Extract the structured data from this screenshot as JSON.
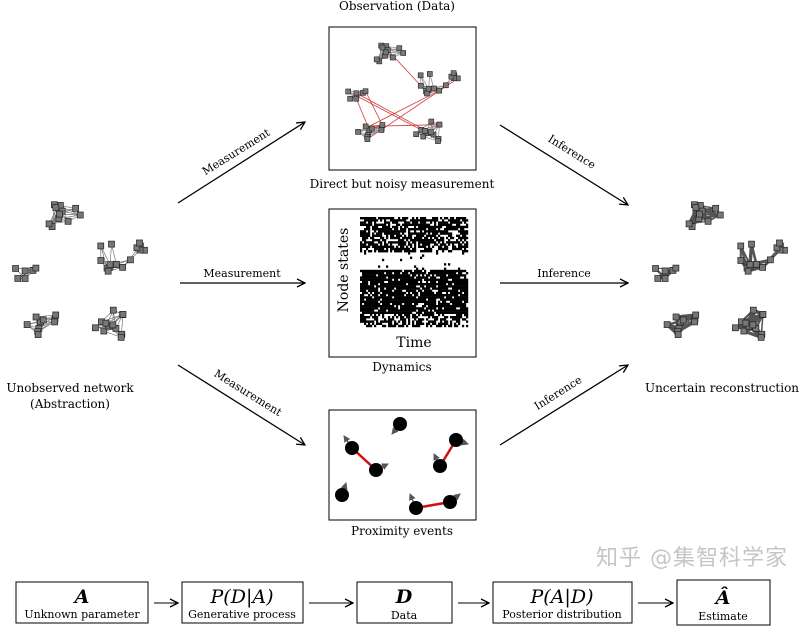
{
  "top_title": "Observation (Data)",
  "left_network": {
    "caption_line1": "Unobserved network",
    "caption_line2": "(Abstraction)"
  },
  "right_network": {
    "caption": "Uncertain reconstruction"
  },
  "panels": [
    {
      "caption": "Direct but noisy measurement"
    },
    {
      "caption": "Dynamics",
      "ylabel": "Node states",
      "xlabel": "Time"
    },
    {
      "caption": "Proximity events"
    }
  ],
  "measurement_label": "Measurement",
  "inference_label": "Inference",
  "pipeline": [
    {
      "symbol": "A",
      "label": "Unknown parameter"
    },
    {
      "symbol": "P(D|A)",
      "label": "Generative process"
    },
    {
      "symbol": "D",
      "label": "Data"
    },
    {
      "symbol": "P(A|D)",
      "label": "Posterior distribution"
    },
    {
      "symbol": "Â",
      "label": "Estimate"
    }
  ],
  "watermark": "知乎 @集智科学家",
  "colors": {
    "edge_noise": "#d04040",
    "node": "#777777",
    "proximity_edge": "#d01010"
  }
}
